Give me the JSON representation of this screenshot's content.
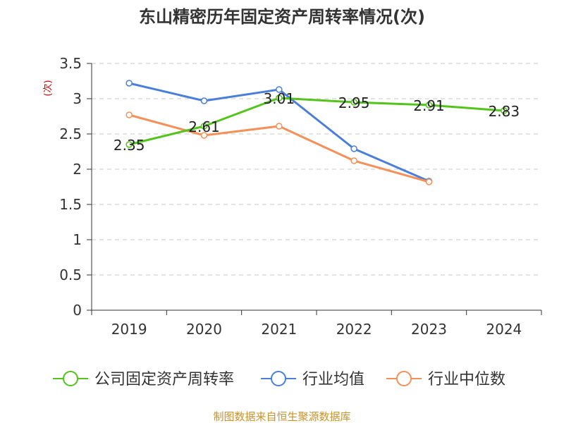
{
  "chart_data": {
    "type": "line",
    "title": "东山精密历年固定资产周转率情况(次)",
    "ylabel": "(次)",
    "xlabel": "",
    "categories": [
      "2019",
      "2020",
      "2021",
      "2022",
      "2023",
      "2024"
    ],
    "ylim": [
      0,
      3.5
    ],
    "yticks": [
      "0",
      "0.5",
      "1",
      "1.5",
      "2",
      "2.5",
      "3",
      "3.5"
    ],
    "grid": "horizontal-dashed",
    "legend_position": "bottom",
    "series": [
      {
        "name": "公司固定资产周转率",
        "values": [
          2.35,
          2.61,
          3.01,
          2.95,
          2.91,
          2.83
        ],
        "data_labels": [
          "2.35",
          "2.61",
          "3.01",
          "2.95",
          "2.91",
          "2.83"
        ],
        "color": "#52c41a"
      },
      {
        "name": "行业均值",
        "values": [
          3.22,
          2.97,
          3.13,
          2.29,
          1.83,
          null
        ],
        "color": "#4a7fd9"
      },
      {
        "name": "行业中位数",
        "values": [
          2.77,
          2.48,
          2.61,
          2.12,
          1.82,
          null
        ],
        "color": "#f59058"
      }
    ]
  },
  "source": "制图数据来自恒生聚源数据库"
}
